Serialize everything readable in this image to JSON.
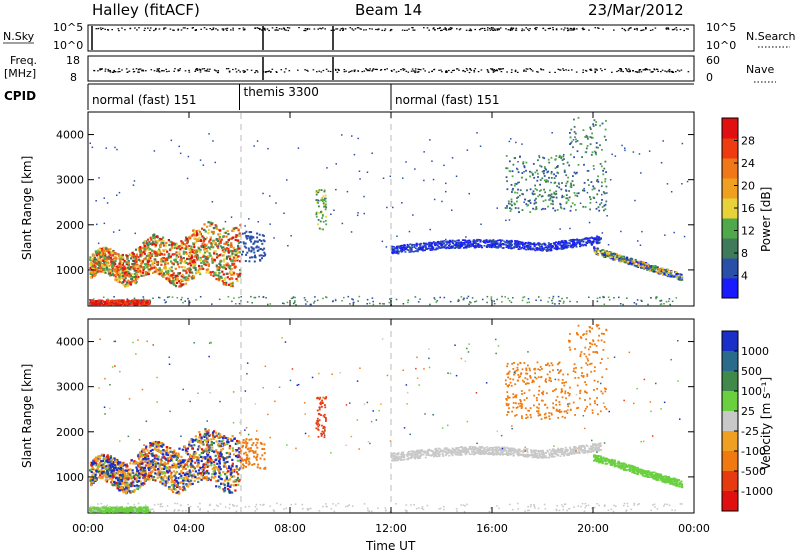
{
  "header": {
    "title": "Halley (fitACF)",
    "beam": "Beam 14",
    "date": "23/Mar/2012"
  },
  "top_strips": {
    "nsky_label": "N.Sky",
    "nsky_ticks": [
      "10^5",
      "10^0"
    ],
    "nsearch_label": "N.Search",
    "nsearch_ticks": [
      "10^5",
      "10^0"
    ],
    "freq_label": "Freq.",
    "freq_unit": "[MHz]",
    "freq_ticks": [
      "18",
      "8"
    ],
    "nave_label": "Nave",
    "nave_ticks": [
      "60",
      "0"
    ],
    "cpid_label": "CPID",
    "cpid_segments": [
      {
        "label": "normal (fast) 151",
        "start_hour": 0,
        "end_hour": 6.0
      },
      {
        "label": "themis 3300",
        "start_hour": 6.0,
        "end_hour": 12.0
      },
      {
        "label": "normal (fast) 151",
        "start_hour": 12.0,
        "end_hour": 24.0
      }
    ]
  },
  "chart_data": [
    {
      "type": "heatmap",
      "name": "power-panel",
      "ylabel": "Slant Range [km]",
      "ylim": [
        200,
        4500
      ],
      "y_ticks": [
        "1000",
        "2000",
        "3000",
        "4000"
      ],
      "xlim_hours": [
        0,
        24
      ],
      "x_ticks": [
        "00:00",
        "04:00",
        "08:00",
        "12:00",
        "16:00",
        "20:00",
        "00:00"
      ],
      "colorbar": {
        "label": "Power [dB]",
        "tick_labels": [
          "4",
          "8",
          "12",
          "16",
          "20",
          "24",
          "28"
        ],
        "colors": [
          "#1a1aff",
          "#2a4fa8",
          "#3f7a5a",
          "#4fa84a",
          "#e8d23a",
          "#f0a020",
          "#f07818",
          "#ee3c10",
          "#e01010"
        ]
      },
      "features": [
        {
          "desc": "intense E-region echoes",
          "hours": [
            0,
            2.4
          ],
          "range_km": [
            200,
            350
          ],
          "level": "high"
        },
        {
          "desc": "patchy echoes",
          "hours": [
            0,
            6
          ],
          "range_km": [
            700,
            1900
          ],
          "level": "mixed"
        },
        {
          "desc": "band",
          "hours": [
            12,
            20.2
          ],
          "range_km": [
            1200,
            1700
          ],
          "level": "low"
        },
        {
          "desc": "descending band",
          "hours": [
            20,
            23.5
          ],
          "range_km": [
            800,
            1400
          ],
          "level": "mixed"
        }
      ]
    },
    {
      "type": "heatmap",
      "name": "velocity-panel",
      "ylabel": "Slant Range [km]",
      "ylim": [
        200,
        4500
      ],
      "y_ticks": [
        "1000",
        "2000",
        "3000",
        "4000"
      ],
      "xlim_hours": [
        0,
        24
      ],
      "x_ticks": [
        "00:00",
        "04:00",
        "08:00",
        "12:00",
        "16:00",
        "20:00",
        "00:00"
      ],
      "xlabel": "Time UT",
      "colorbar": {
        "label": "Velocity [m s⁻¹]",
        "tick_labels": [
          "1000",
          "500",
          "100",
          "25",
          "-25",
          "-100",
          "-500",
          "-1000"
        ],
        "colors": [
          "#1a2fc8",
          "#2a6a8a",
          "#3f8a4a",
          "#6ad040",
          "#c8c8c8",
          "#f0a020",
          "#f07a10",
          "#e83a10",
          "#e01010"
        ]
      }
    }
  ],
  "colors": {
    "cpid_divider": "#000000",
    "dashed_marker": "#bbbbbb"
  }
}
